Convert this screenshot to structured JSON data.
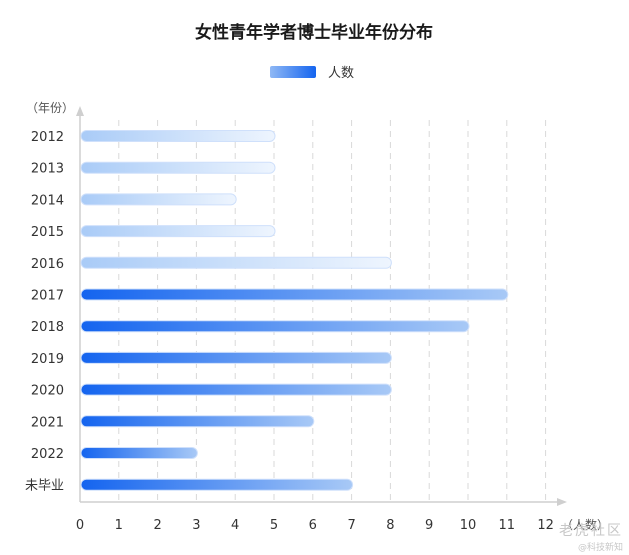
{
  "chart_data": {
    "type": "bar",
    "orientation": "horizontal",
    "title": "女性青年学者博士毕业年份分布",
    "ylabel": "（年份）",
    "xlabel": "（人数）",
    "categories": [
      "2012",
      "2013",
      "2014",
      "2015",
      "2016",
      "2017",
      "2018",
      "2019",
      "2020",
      "2021",
      "2022",
      "未毕业"
    ],
    "series": [
      {
        "name": "人数",
        "values": [
          5,
          5,
          4,
          5,
          8,
          11,
          10,
          8,
          8,
          6,
          3,
          7
        ]
      }
    ],
    "xlim": [
      0,
      12
    ],
    "xticks": [
      "0",
      "1",
      "2",
      "3",
      "4",
      "5",
      "6",
      "7",
      "8",
      "9",
      "10",
      "11",
      "12"
    ],
    "grid": "vertical dashed",
    "legend": "top-center",
    "colors": {
      "bar_dark": "#1566f0",
      "bar_light": "#cfe1fb",
      "axis": "#cfcfcf",
      "grid": "#d9d9d9"
    }
  },
  "watermark": {
    "main": "老虎社区",
    "sub": "@科技新知"
  }
}
